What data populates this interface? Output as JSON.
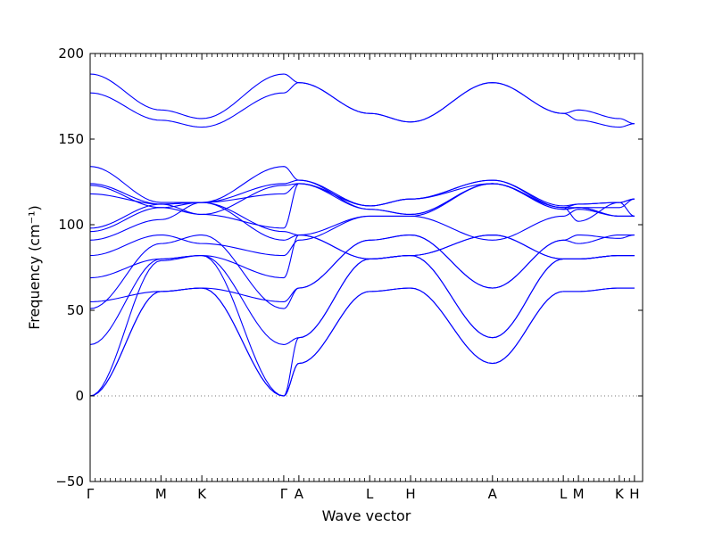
{
  "chart_data": {
    "type": "line",
    "xlabel": "Wave vector",
    "ylabel": "Frequency (cm⁻¹)",
    "ylim": [
      -50,
      200
    ],
    "yticks": [
      -50,
      0,
      50,
      100,
      150,
      200
    ],
    "grid": false,
    "legend": "none",
    "xlim": [
      0,
      3.393
    ],
    "high_symmetry_points": [
      {
        "label": "Γ",
        "x": 0.0
      },
      {
        "label": "M",
        "x": 0.435
      },
      {
        "label": "K",
        "x": 0.686
      },
      {
        "label": "Γ",
        "x": 1.189
      },
      {
        "label": "A",
        "x": 1.282
      },
      {
        "label": "L",
        "x": 1.717
      },
      {
        "label": "H",
        "x": 1.968
      },
      {
        "label": "A",
        "x": 2.471
      },
      {
        "label": "L",
        "x": 2.906
      },
      {
        "label": "M",
        "x": 2.999
      },
      {
        "label": "K",
        "x": 3.25
      },
      {
        "label": "H",
        "x": 3.343
      }
    ],
    "zero_line": {
      "y": 0,
      "style": "dotted",
      "color": "#777777"
    },
    "series_color": "#0000ff",
    "series": [
      {
        "pts": [
          [
            0,
            0
          ],
          [
            0.435,
            61
          ],
          [
            0.686,
            63
          ],
          [
            1.189,
            0
          ],
          [
            1.282,
            19
          ],
          [
            1.717,
            61
          ],
          [
            1.968,
            63
          ],
          [
            2.471,
            19
          ],
          [
            2.906,
            61
          ],
          [
            2.999,
            61
          ],
          [
            3.25,
            63
          ],
          [
            3.343,
            63
          ]
        ]
      },
      {
        "pts": [
          [
            0,
            0
          ],
          [
            0.435,
            61
          ],
          [
            0.686,
            63
          ],
          [
            1.189,
            0
          ],
          [
            1.282,
            19
          ],
          [
            1.717,
            61
          ],
          [
            1.968,
            63
          ],
          [
            2.471,
            19
          ],
          [
            2.906,
            61
          ],
          [
            2.999,
            61
          ],
          [
            3.25,
            63
          ],
          [
            3.343,
            63
          ]
        ]
      },
      {
        "pts": [
          [
            0,
            0
          ],
          [
            0.435,
            79
          ],
          [
            0.686,
            82
          ],
          [
            1.189,
            0
          ],
          [
            1.282,
            34
          ],
          [
            1.717,
            80
          ],
          [
            1.968,
            82
          ],
          [
            2.471,
            34
          ],
          [
            2.906,
            80
          ],
          [
            2.999,
            80
          ],
          [
            3.25,
            82
          ],
          [
            3.343,
            82
          ]
        ]
      },
      {
        "pts": [
          [
            0,
            30
          ],
          [
            0.435,
            80
          ],
          [
            0.686,
            82
          ],
          [
            1.189,
            30
          ],
          [
            1.282,
            34
          ],
          [
            1.717,
            80
          ],
          [
            1.968,
            82
          ],
          [
            2.471,
            34
          ],
          [
            2.906,
            80
          ],
          [
            2.999,
            80
          ],
          [
            3.25,
            82
          ],
          [
            3.343,
            82
          ]
        ]
      },
      {
        "pts": [
          [
            0,
            51
          ],
          [
            0.435,
            89
          ],
          [
            0.686,
            94
          ],
          [
            1.189,
            51
          ],
          [
            1.282,
            63
          ],
          [
            1.717,
            91
          ],
          [
            1.968,
            94
          ],
          [
            2.471,
            63
          ],
          [
            2.906,
            91
          ],
          [
            2.999,
            94
          ],
          [
            3.25,
            92
          ],
          [
            3.343,
            94
          ]
        ]
      },
      {
        "pts": [
          [
            0,
            55
          ],
          [
            0.435,
            61
          ],
          [
            0.686,
            63
          ],
          [
            1.189,
            55
          ],
          [
            1.282,
            63
          ],
          [
            1.717,
            91
          ],
          [
            1.968,
            94
          ],
          [
            2.471,
            63
          ],
          [
            2.906,
            91
          ],
          [
            2.999,
            89
          ],
          [
            3.25,
            94
          ],
          [
            3.343,
            94
          ]
        ]
      },
      {
        "pts": [
          [
            0,
            69
          ],
          [
            0.435,
            80
          ],
          [
            0.686,
            82
          ],
          [
            1.189,
            69
          ],
          [
            1.282,
            94
          ],
          [
            1.717,
            80
          ],
          [
            1.968,
            82
          ],
          [
            2.471,
            94
          ],
          [
            2.906,
            80
          ],
          [
            2.999,
            80
          ],
          [
            3.25,
            82
          ],
          [
            3.343,
            82
          ]
        ]
      },
      {
        "pts": [
          [
            0,
            82
          ],
          [
            0.435,
            94
          ],
          [
            0.686,
            89
          ],
          [
            1.189,
            82
          ],
          [
            1.282,
            91
          ],
          [
            1.717,
            105
          ],
          [
            1.968,
            105
          ],
          [
            2.471,
            91
          ],
          [
            2.906,
            105
          ],
          [
            2.999,
            109
          ],
          [
            3.25,
            105
          ],
          [
            3.343,
            105
          ]
        ]
      },
      {
        "pts": [
          [
            0,
            91
          ],
          [
            0.435,
            103
          ],
          [
            0.686,
            113
          ],
          [
            1.189,
            91
          ],
          [
            1.282,
            94
          ],
          [
            1.717,
            80
          ],
          [
            1.968,
            82
          ],
          [
            2.471,
            94
          ],
          [
            2.906,
            80
          ],
          [
            2.999,
            80
          ],
          [
            3.25,
            82
          ],
          [
            3.343,
            82
          ]
        ]
      },
      {
        "pts": [
          [
            0,
            96
          ],
          [
            0.435,
            110
          ],
          [
            0.686,
            113
          ],
          [
            1.189,
            96
          ],
          [
            1.282,
            94
          ],
          [
            1.717,
            105
          ],
          [
            1.968,
            105
          ],
          [
            2.471,
            124
          ],
          [
            2.906,
            110
          ],
          [
            2.999,
            102
          ],
          [
            3.25,
            113
          ],
          [
            3.343,
            105
          ]
        ]
      },
      {
        "pts": [
          [
            0,
            98
          ],
          [
            0.435,
            112
          ],
          [
            0.686,
            106
          ],
          [
            1.189,
            98
          ],
          [
            1.282,
            124
          ],
          [
            1.717,
            111
          ],
          [
            1.968,
            115
          ],
          [
            2.471,
            124
          ],
          [
            2.906,
            110
          ],
          [
            2.999,
            112
          ],
          [
            3.25,
            113
          ],
          [
            3.343,
            115
          ]
        ]
      },
      {
        "pts": [
          [
            0,
            118
          ],
          [
            0.435,
            112
          ],
          [
            0.686,
            113
          ],
          [
            1.189,
            118
          ],
          [
            1.282,
            124
          ],
          [
            1.717,
            111
          ],
          [
            1.968,
            115
          ],
          [
            2.471,
            126
          ],
          [
            2.906,
            110
          ],
          [
            2.999,
            110
          ],
          [
            3.25,
            110
          ],
          [
            3.343,
            115
          ]
        ]
      },
      {
        "pts": [
          [
            0,
            123
          ],
          [
            0.435,
            110
          ],
          [
            0.686,
            106
          ],
          [
            1.189,
            123
          ],
          [
            1.282,
            124
          ],
          [
            1.717,
            109
          ],
          [
            1.968,
            106
          ],
          [
            2.471,
            124
          ],
          [
            2.906,
            109
          ],
          [
            2.999,
            110
          ],
          [
            3.25,
            105
          ],
          [
            3.343,
            105
          ]
        ]
      },
      {
        "pts": [
          [
            0,
            124
          ],
          [
            0.435,
            112
          ],
          [
            0.686,
            113
          ],
          [
            1.189,
            124
          ],
          [
            1.282,
            126
          ],
          [
            1.717,
            109
          ],
          [
            1.968,
            106
          ],
          [
            2.471,
            124
          ],
          [
            2.906,
            109
          ],
          [
            2.999,
            110
          ],
          [
            3.25,
            105
          ],
          [
            3.343,
            105
          ]
        ]
      },
      {
        "pts": [
          [
            0,
            134
          ],
          [
            0.435,
            113
          ],
          [
            0.686,
            113
          ],
          [
            1.189,
            134
          ],
          [
            1.282,
            126
          ],
          [
            1.717,
            111
          ],
          [
            1.968,
            115
          ],
          [
            2.471,
            126
          ],
          [
            2.906,
            111
          ],
          [
            2.999,
            112
          ],
          [
            3.25,
            113
          ],
          [
            3.343,
            115
          ]
        ]
      },
      {
        "pts": [
          [
            0,
            177
          ],
          [
            0.435,
            161
          ],
          [
            0.686,
            157
          ],
          [
            1.189,
            177
          ],
          [
            1.282,
            183
          ],
          [
            1.717,
            165
          ],
          [
            1.968,
            160
          ],
          [
            2.471,
            183
          ],
          [
            2.906,
            165
          ],
          [
            2.999,
            161
          ],
          [
            3.25,
            157
          ],
          [
            3.343,
            159
          ]
        ]
      },
      {
        "pts": [
          [
            0,
            188
          ],
          [
            0.435,
            167
          ],
          [
            0.686,
            162
          ],
          [
            1.189,
            188
          ],
          [
            1.282,
            183
          ],
          [
            1.717,
            165
          ],
          [
            1.968,
            160
          ],
          [
            2.471,
            183
          ],
          [
            2.906,
            165
          ],
          [
            2.999,
            167
          ],
          [
            3.25,
            162
          ],
          [
            3.343,
            159
          ]
        ]
      }
    ]
  }
}
